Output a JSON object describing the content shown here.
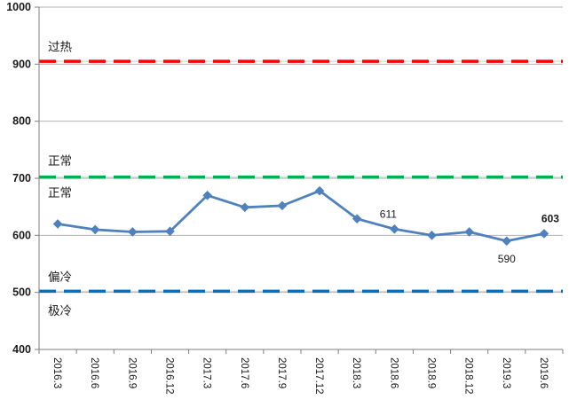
{
  "chart_data": {
    "type": "line",
    "title": "",
    "xlabel": "",
    "ylabel": "",
    "categories": [
      "2016.3",
      "2016.6",
      "2016.9",
      "2016.12",
      "2017.3",
      "2017.6",
      "2017.9",
      "2017.12",
      "2018.3",
      "2018.6",
      "2018.9",
      "2018.12",
      "2019.3",
      "2019.6"
    ],
    "series": [
      {
        "name": "index-line",
        "color": "#4f81bd",
        "marker": "diamond",
        "values": [
          620,
          610,
          606,
          607,
          670,
          649,
          652,
          678,
          629,
          611,
          600,
          606,
          590,
          603
        ]
      }
    ],
    "ylim": [
      400,
      1000
    ],
    "yticks": [
      400,
      500,
      600,
      700,
      800,
      900,
      1000
    ],
    "grid": true,
    "legend_position": "none",
    "x_tick_label_rotation_deg": 90,
    "reference_lines": [
      {
        "name": "overheat-line",
        "value": 905,
        "color": "#ff0000",
        "style": "dashed"
      },
      {
        "name": "normal-line",
        "value": 702,
        "color": "#00b050",
        "style": "dashed"
      },
      {
        "name": "cold-line",
        "value": 502,
        "color": "#0070c0",
        "style": "dashed"
      }
    ],
    "zone_labels": [
      {
        "text": "过热",
        "at_value": 930
      },
      {
        "text": "正常",
        "at_value": 730
      },
      {
        "text": "正常",
        "at_value": 674
      },
      {
        "text": "偏冷",
        "at_value": 527
      },
      {
        "text": "极冷",
        "at_value": 468
      }
    ],
    "point_labels": [
      {
        "index": 9,
        "text": "611",
        "bold": false,
        "position": "above-left"
      },
      {
        "index": 12,
        "text": "590",
        "bold": false,
        "position": "below"
      },
      {
        "index": 13,
        "text": "603",
        "bold": true,
        "position": "above-right"
      }
    ]
  },
  "colors": {
    "series": "#4f81bd",
    "gridline": "#b3b3b3",
    "axis": "#7f7f7f",
    "ref_underlay": "#d9d9d9",
    "text": "#1a1a1a",
    "zone_text": "#000000"
  }
}
